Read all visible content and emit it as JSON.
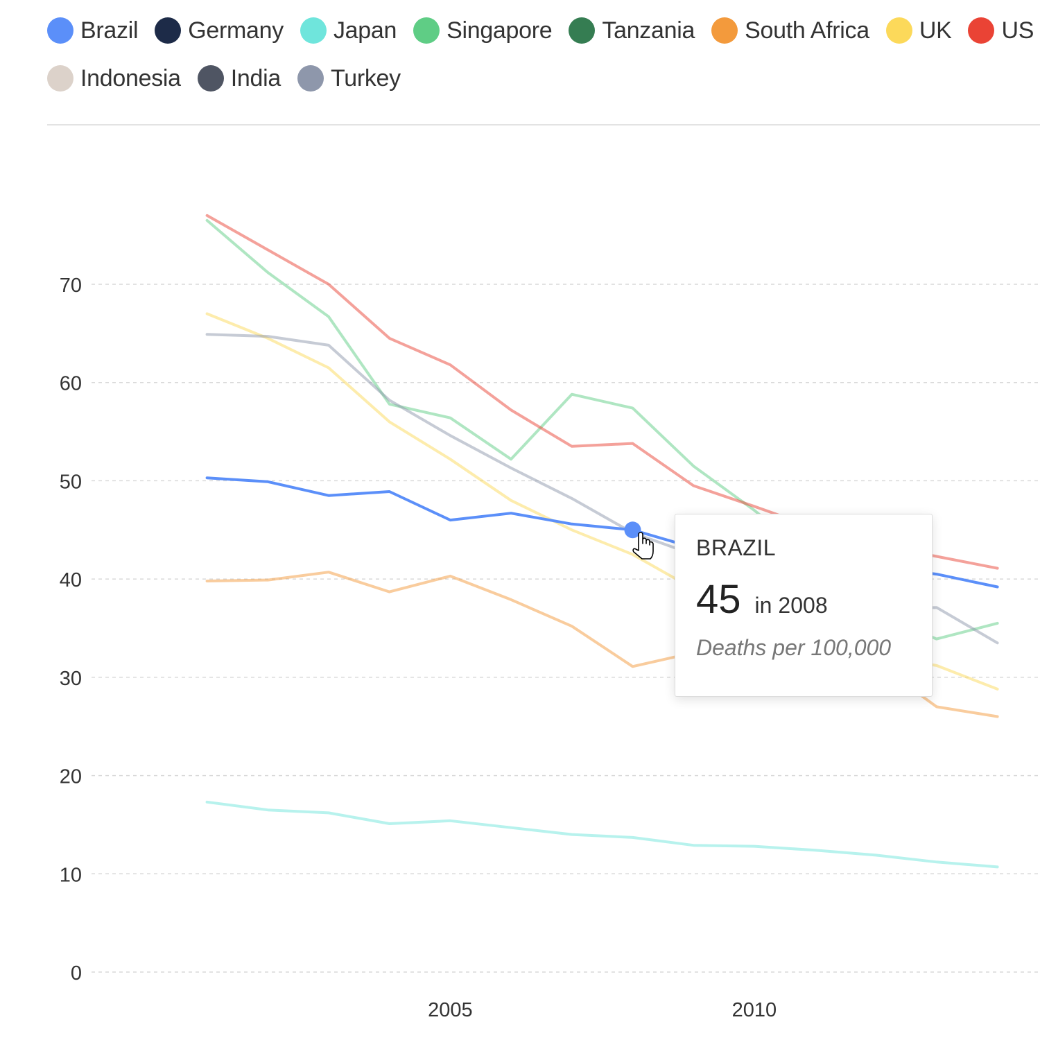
{
  "legend": {
    "rows": [
      [
        {
          "name": "Brazil",
          "color": "#5b8ff9"
        },
        {
          "name": "Germany",
          "color": "#1d2b48"
        },
        {
          "name": "Japan",
          "color": "#6fe5dc"
        },
        {
          "name": "Singapore",
          "color": "#5fcd85"
        },
        {
          "name": "Tanzania",
          "color": "#357d52"
        },
        {
          "name": "South Africa",
          "color": "#f39a3c"
        },
        {
          "name": "UK",
          "color": "#fcd95a"
        },
        {
          "name": "US",
          "color": "#ea4335"
        }
      ],
      [
        {
          "name": "Indonesia",
          "color": "#dcd2ca"
        },
        {
          "name": "India",
          "color": "#4f5563"
        },
        {
          "name": "Turkey",
          "color": "#8e97ab"
        }
      ]
    ]
  },
  "tooltip": {
    "series": "BRAZIL",
    "value": "45",
    "year_prefix": "in",
    "year": "2008",
    "unit": "Deaths per 100,000"
  },
  "chart_data": {
    "type": "line",
    "x": [
      2001,
      2002,
      2003,
      2004,
      2005,
      2006,
      2007,
      2008,
      2009,
      2010,
      2011,
      2012,
      2013,
      2014
    ],
    "xticks": [
      2005,
      2010
    ],
    "xlim": [
      1999.1,
      2014.7
    ],
    "yticks": [
      0,
      10,
      20,
      30,
      40,
      50,
      60,
      70
    ],
    "ylim": [
      0,
      70
    ],
    "grid": true,
    "legend_position": "top",
    "highlight": {
      "series": "Brazil",
      "x": 2008
    },
    "series": [
      {
        "name": "Japan",
        "color": "#6fe5dc",
        "values": [
          17.3,
          16.5,
          16.2,
          15.1,
          15.4,
          14.7,
          14.0,
          13.7,
          12.9,
          12.8,
          12.4,
          11.9,
          11.2,
          10.7
        ]
      },
      {
        "name": "South Africa",
        "color": "#f39a3c",
        "values": [
          39.8,
          39.9,
          40.7,
          38.7,
          40.3,
          37.9,
          35.2,
          31.1,
          32.5,
          34.0,
          33.2,
          31.5,
          27.0,
          26.0
        ]
      },
      {
        "name": "UK",
        "color": "#fcd95a",
        "values": [
          67.0,
          64.5,
          61.5,
          56.0,
          52.2,
          48.0,
          45.0,
          42.5,
          39.0,
          36.0,
          34.0,
          32.2,
          31.2,
          28.8
        ]
      },
      {
        "name": "Singapore",
        "color": "#5fcd85",
        "values": [
          76.5,
          71.2,
          66.7,
          57.8,
          56.4,
          52.2,
          58.8,
          57.4,
          51.5,
          47.0,
          42.0,
          36.5,
          33.9,
          35.5
        ]
      },
      {
        "name": "US",
        "color": "#ea4335",
        "values": [
          77.0,
          73.5,
          70.0,
          64.5,
          61.8,
          57.2,
          53.5,
          53.8,
          49.5,
          47.4,
          45.2,
          43.5,
          42.3,
          41.1
        ]
      },
      {
        "name": "Turkey",
        "color": "#8e97ab",
        "values": [
          64.9,
          64.7,
          63.8,
          58.2,
          54.6,
          51.3,
          48.2,
          44.7,
          42.5,
          39.5,
          38.5,
          37.0,
          37.1,
          33.5
        ]
      },
      {
        "name": "Brazil",
        "color": "#5b8ff9",
        "values": [
          50.3,
          49.9,
          48.5,
          48.9,
          46.0,
          46.7,
          45.6,
          45.0,
          43.2,
          42.6,
          42.0,
          41.3,
          40.5,
          39.2
        ]
      }
    ]
  }
}
